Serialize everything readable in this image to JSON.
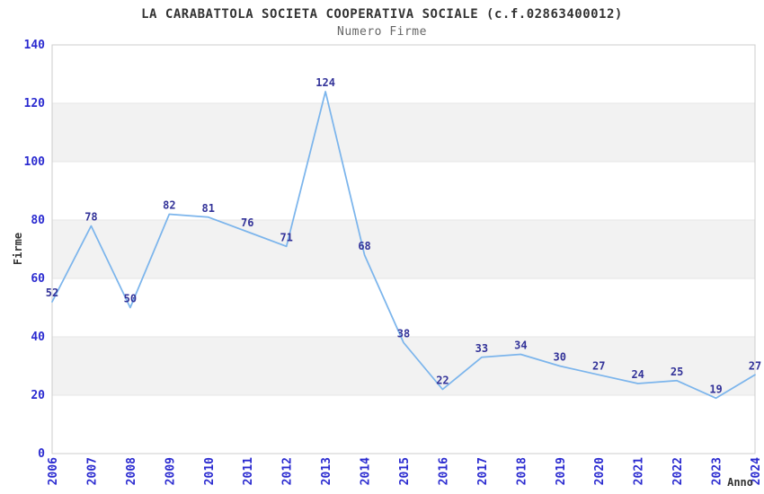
{
  "chart_data": {
    "type": "line",
    "title": "LA CARABATTOLA SOCIETA COOPERATIVA SOCIALE (c.f.02863400012)",
    "subtitle": "Numero Firme",
    "xlabel": "Anno",
    "ylabel": "Firme",
    "categories": [
      "2006",
      "2007",
      "2008",
      "2009",
      "2010",
      "2011",
      "2012",
      "2013",
      "2014",
      "2015",
      "2016",
      "2017",
      "2018",
      "2019",
      "2020",
      "2021",
      "2022",
      "2023",
      "2024"
    ],
    "values": [
      52,
      78,
      50,
      82,
      81,
      76,
      71,
      124,
      68,
      38,
      22,
      33,
      34,
      30,
      27,
      24,
      25,
      19,
      27
    ],
    "ylim": [
      0,
      140
    ],
    "ytick_step": 20,
    "yticks": [
      0,
      20,
      40,
      60,
      80,
      100,
      120,
      140
    ],
    "grid": true,
    "alternating_bands": true,
    "legend_position": "none",
    "data_labels": true,
    "colors": {
      "line": "#7cb5ec",
      "data_label": "#333399",
      "axis_tick_label": "#2b2bd0",
      "band": "#f2f2f2",
      "gridline": "#e6e6e6",
      "plot_border": "#cccccc",
      "title": "#333333",
      "subtitle": "#666666",
      "axis_title": "#333333",
      "background": "#ffffff"
    }
  }
}
